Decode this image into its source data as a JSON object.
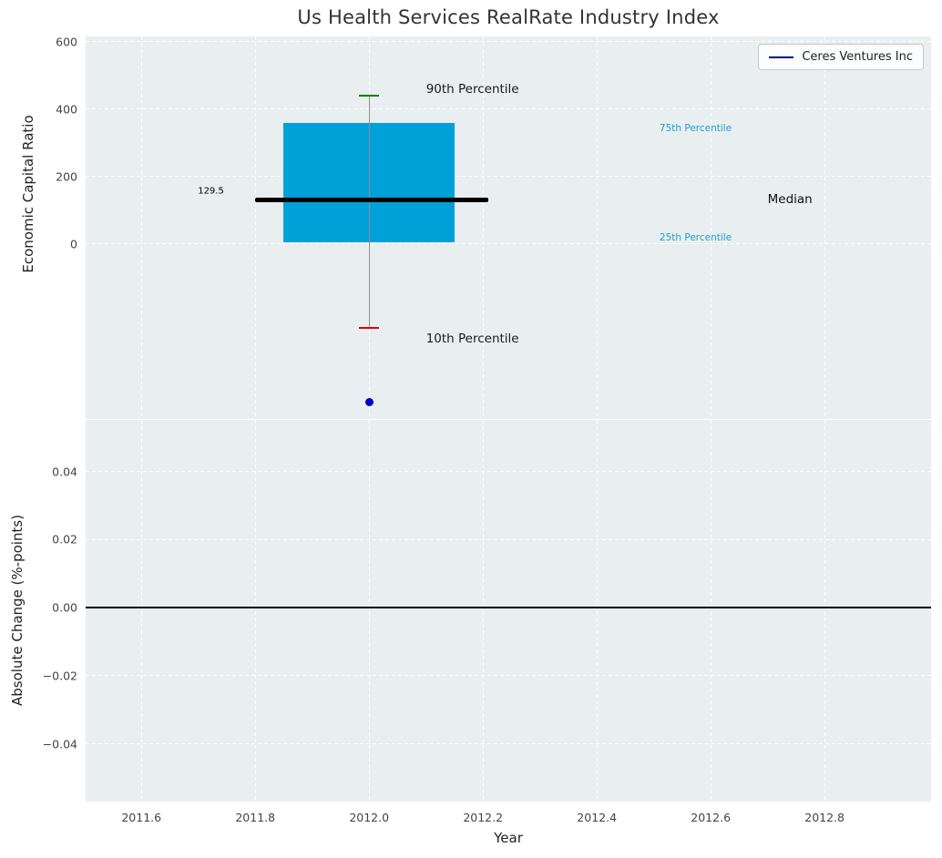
{
  "title": "Us Health Services RealRate Industry Index",
  "legend": {
    "label": "Ceres Ventures Inc"
  },
  "colors": {
    "panel_background": "#e9eef0",
    "grid": "#ffffff",
    "box_fill": "#00a1d9",
    "median_line": "#000000",
    "whisker": "#8f8f8f",
    "p90_cap": "#008000",
    "p10_cap": "#e50000",
    "company_point": "#0000cd",
    "legend_line": "#00008b",
    "percentile_label": "#1d9fcc",
    "zero_line": "#000000"
  },
  "chart_data": {
    "type": "boxplot",
    "title": "Us Health Services RealRate Industry Index",
    "xlabel": "Year",
    "xlim": [
      2011.502,
      2012.987
    ],
    "xticks": [
      {
        "v": 2011.6,
        "label": "2011.6"
      },
      {
        "v": 2011.8,
        "label": "2011.8"
      },
      {
        "v": 2012.0,
        "label": "2012.0"
      },
      {
        "v": 2012.2,
        "label": "2012.2"
      },
      {
        "v": 2012.4,
        "label": "2012.4"
      },
      {
        "v": 2012.6,
        "label": "2012.6"
      },
      {
        "v": 2012.8,
        "label": "2012.8"
      }
    ],
    "top_panel": {
      "ylabel": "Economic Capital Ratio",
      "ylim": [
        -520,
        616
      ],
      "yticks": [
        {
          "v": 0,
          "label": "0"
        },
        {
          "v": 200,
          "label": "200"
        },
        {
          "v": 400,
          "label": "400"
        },
        {
          "v": 600,
          "label": "600"
        }
      ],
      "box": {
        "x": 2012.0,
        "x_left": 2011.85,
        "x_right": 2012.15,
        "p25": 5,
        "p75": 360
      },
      "median": {
        "value": 129.5,
        "x_left": 2011.8,
        "x_right": 2012.21
      },
      "whiskers": {
        "x": 2012.0,
        "p10": -250,
        "p90": 440,
        "cap_half_width": 0.018
      },
      "company_point": {
        "series": "Ceres Ventures Inc",
        "x": 2012.0,
        "value": -470
      },
      "annotations": [
        {
          "name": "median-value-label",
          "text": "129.5",
          "x": 2011.745,
          "y": 155,
          "size": 10,
          "color": "#000000",
          "anchor": "right"
        },
        {
          "name": "p90-label",
          "text": "90th Percentile",
          "x": 2012.1,
          "y": 458,
          "size": 13.5,
          "color": "#1a1a1a",
          "anchor": "left"
        },
        {
          "name": "p75-label",
          "text": "75th Percentile",
          "x": 2012.51,
          "y": 342,
          "size": 10.5,
          "color": "#1d9fcc",
          "anchor": "left"
        },
        {
          "name": "median-label",
          "text": "Median",
          "x": 2012.7,
          "y": 132,
          "size": 13.5,
          "color": "#111111",
          "anchor": "left"
        },
        {
          "name": "p25-label",
          "text": "25th Percentile",
          "x": 2012.51,
          "y": 18,
          "size": 10.5,
          "color": "#1d9fcc",
          "anchor": "left"
        },
        {
          "name": "p10-label",
          "text": "10th Percentile",
          "x": 2012.1,
          "y": -283,
          "size": 13.5,
          "color": "#1a1a1a",
          "anchor": "left"
        }
      ]
    },
    "bottom_panel": {
      "ylabel": "Absolute Change (%-points)",
      "ylim": [
        -0.057,
        0.0552
      ],
      "yticks": [
        {
          "v": 0.04,
          "label": "0.04"
        },
        {
          "v": 0.02,
          "label": "0.02"
        },
        {
          "v": 0.0,
          "label": "0.00"
        },
        {
          "v": -0.02,
          "label": "−0.02"
        },
        {
          "v": -0.04,
          "label": "−0.04"
        }
      ],
      "zero_line_y": 0.0
    }
  }
}
